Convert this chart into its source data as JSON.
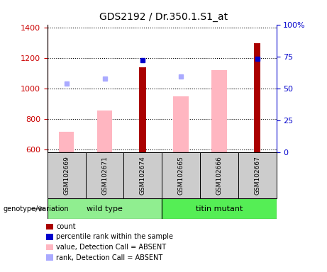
{
  "title": "GDS2192 / Dr.350.1.S1_at",
  "samples": [
    "GSM102669",
    "GSM102671",
    "GSM102674",
    "GSM102665",
    "GSM102666",
    "GSM102667"
  ],
  "group_labels": [
    "wild type",
    "titin mutant"
  ],
  "ylim_left": [
    580,
    1420
  ],
  "ylim_right": [
    0,
    100
  ],
  "yticks_left": [
    600,
    800,
    1000,
    1200,
    1400
  ],
  "yticks_right": [
    0,
    25,
    50,
    75,
    100
  ],
  "count_values": [
    null,
    null,
    1140,
    null,
    null,
    1295
  ],
  "count_color": "#aa0000",
  "percentile_values": [
    null,
    null,
    72,
    null,
    null,
    73
  ],
  "percentile_color": "#0000cc",
  "absent_value_bars": [
    715,
    855,
    null,
    950,
    1120,
    null
  ],
  "absent_value_color": "#ffb6c1",
  "absent_rank_dots": [
    1030,
    1065,
    null,
    1080,
    null,
    null
  ],
  "absent_rank_dot_color": "#aaaaff",
  "bar_width": 0.4,
  "count_bar_width": 0.18,
  "legend_items": [
    {
      "label": "count",
      "color": "#aa0000"
    },
    {
      "label": "percentile rank within the sample",
      "color": "#0000cc"
    },
    {
      "label": "value, Detection Call = ABSENT",
      "color": "#ffb6c1"
    },
    {
      "label": "rank, Detection Call = ABSENT",
      "color": "#aaaaff"
    }
  ],
  "sample_box_color": "#cccccc",
  "genotype_label": "genotype/variation",
  "left_axis_color": "#cc0000",
  "right_axis_color": "#0000cc",
  "wt_color": "#90ee90",
  "tm_color": "#55ee55"
}
